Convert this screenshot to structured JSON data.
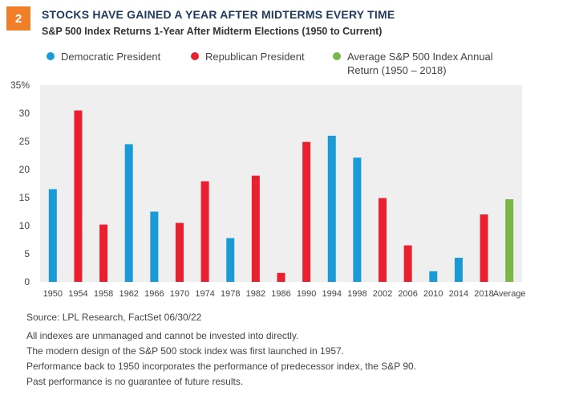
{
  "badge": "2",
  "title": "STOCKS HAVE GAINED A YEAR AFTER MIDTERMS EVERY TIME",
  "subtitle": "S&P 500 Index Returns 1-Year After Midterm Elections (1950 to Current)",
  "colors": {
    "democratic": "#1a9ad6",
    "republican": "#e8202f",
    "average": "#7ab648",
    "plot_bg": "#efefef",
    "badge": "#f07f2a"
  },
  "legend": [
    {
      "label": "Democratic President",
      "color": "#1a9ad6"
    },
    {
      "label": "Republican President",
      "color": "#e8202f"
    },
    {
      "label": "Average S&P 500 Index Annual Return (1950 – 2018)",
      "color": "#7ab648"
    }
  ],
  "chart_data": {
    "type": "bar",
    "categories": [
      "1950",
      "1954",
      "1958",
      "1962",
      "1966",
      "1970",
      "1974",
      "1978",
      "1982",
      "1986",
      "1990",
      "1994",
      "1998",
      "2002",
      "2006",
      "2010",
      "2014",
      "2018",
      "Average"
    ],
    "values": [
      16.5,
      30.5,
      10.2,
      24.5,
      12.5,
      10.5,
      17.9,
      7.8,
      18.9,
      1.6,
      24.9,
      26.0,
      22.1,
      14.9,
      6.5,
      1.9,
      4.3,
      12.0,
      14.7
    ],
    "party": [
      "D",
      "R",
      "R",
      "D",
      "D",
      "R",
      "R",
      "D",
      "R",
      "R",
      "R",
      "D",
      "D",
      "R",
      "R",
      "D",
      "D",
      "R",
      "A"
    ],
    "ylim": [
      0,
      35
    ],
    "yticks": [
      "0",
      "5",
      "10",
      "15",
      "20",
      "25",
      "30",
      "35%"
    ],
    "xlabel": "",
    "ylabel": "",
    "grid": false
  },
  "notes": {
    "source": "Source: LPL Research, FactSet  06/30/22",
    "lines": [
      "All indexes are unmanaged and cannot be invested into directly.",
      "The modern design of the S&P 500 stock index was first launched in 1957.",
      "Performance back to 1950 incorporates the performance of predecessor index, the S&P 90.",
      "Past performance is no guarantee of future results."
    ]
  }
}
